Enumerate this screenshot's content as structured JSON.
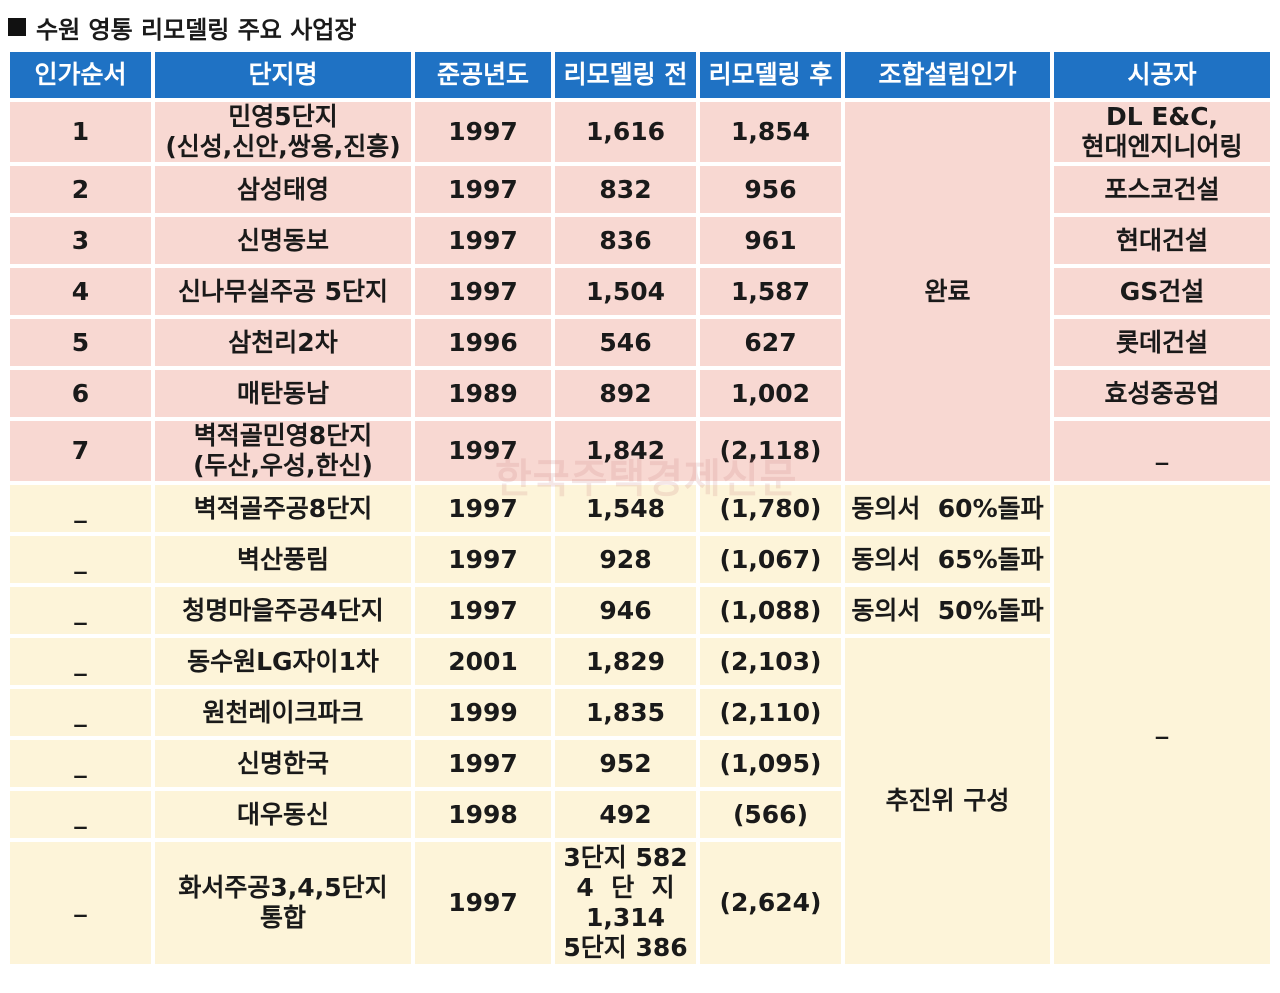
{
  "title": "수원 영통 리모델링 주요 사업장",
  "watermark": "한국주택경제신문",
  "headers": [
    "인가순서",
    "단지명",
    "준공년도",
    "리모델링 전",
    "리모델링 후",
    "조합설립인가",
    "시공자"
  ],
  "rows": [
    {
      "order": "1",
      "name_lines": [
        "민영5단지",
        "(신성,신안,쌍용,진흥)"
      ],
      "year": "1997",
      "before": "1,616",
      "after": "1,854",
      "contractor_lines": [
        "DL E&C,",
        "현대엔지니어링"
      ]
    },
    {
      "order": "2",
      "name": "삼성태영",
      "year": "1997",
      "before": "832",
      "after": "956",
      "contractor": "포스코건설"
    },
    {
      "order": "3",
      "name": "신명동보",
      "year": "1997",
      "before": "836",
      "after": "961",
      "contractor": "현대건설"
    },
    {
      "order": "4",
      "name": "신나무실주공 5단지",
      "year": "1997",
      "before": "1,504",
      "after": "1,587",
      "contractor": "GS건설"
    },
    {
      "order": "5",
      "name": "삼천리2차",
      "year": "1996",
      "before": "546",
      "after": "627",
      "contractor": "롯데건설"
    },
    {
      "order": "6",
      "name": "매탄동남",
      "year": "1989",
      "before": "892",
      "after": "1,002",
      "contractor": "효성중공업"
    },
    {
      "order": "7",
      "name_lines": [
        "벽적골민영8단지",
        "(두산,우성,한신)"
      ],
      "year": "1997",
      "before": "1,842",
      "after": "(2,118)",
      "contractor": "_"
    },
    {
      "order": "_",
      "name": "벽적골주공8단지",
      "year": "1997",
      "before": "1,548",
      "after": "(1,780)",
      "status": "동의서  60%돌파"
    },
    {
      "order": "_",
      "name": "벽산풍림",
      "year": "1997",
      "before": "928",
      "after": "(1,067)",
      "status": "동의서  65%돌파"
    },
    {
      "order": "_",
      "name": "청명마을주공4단지",
      "year": "1997",
      "before": "946",
      "after": "(1,088)",
      "status": "동의서  50%돌파"
    },
    {
      "order": "_",
      "name": "동수원LG자이1차",
      "year": "2001",
      "before": "1,829",
      "after": "(2,103)"
    },
    {
      "order": "_",
      "name": "원천레이크파크",
      "year": "1999",
      "before": "1,835",
      "after": "(2,110)"
    },
    {
      "order": "_",
      "name": "신명한국",
      "year": "1997",
      "before": "952",
      "after": "(1,095)"
    },
    {
      "order": "_",
      "name": "대우동신",
      "year": "1998",
      "before": "492",
      "after": "(566)"
    },
    {
      "order": "_",
      "name_lines": [
        "화서주공3,4,5단지",
        "통합"
      ],
      "year": "1997",
      "before_lines": [
        "3단지 582",
        "4  단  지",
        "1,314",
        "5단지 386"
      ],
      "after": "(2,624)"
    }
  ],
  "merged": {
    "approval_done": "완료",
    "approval_committee": "추진위 구성",
    "contractor_none": "_"
  },
  "colors": {
    "header_bg": "#1f72c4",
    "done_row_bg": "#f8d8d2",
    "pending_row_bg": "#fdf4d9"
  }
}
